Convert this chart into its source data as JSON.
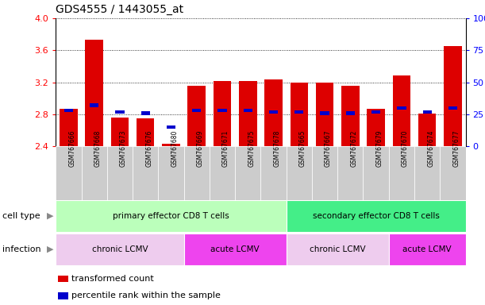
{
  "title": "GDS4555 / 1443055_at",
  "samples": [
    "GSM767666",
    "GSM767668",
    "GSM767673",
    "GSM767676",
    "GSM767680",
    "GSM767669",
    "GSM767671",
    "GSM767675",
    "GSM767678",
    "GSM767665",
    "GSM767667",
    "GSM767672",
    "GSM767679",
    "GSM767670",
    "GSM767674",
    "GSM767677"
  ],
  "transformed_counts": [
    2.87,
    3.73,
    2.76,
    2.75,
    2.43,
    3.16,
    3.22,
    3.22,
    3.24,
    3.2,
    3.2,
    3.16,
    2.87,
    3.29,
    2.81,
    3.65
  ],
  "percentile_ranks": [
    28,
    32,
    27,
    26,
    15,
    28,
    28,
    28,
    27,
    27,
    26,
    26,
    27,
    30,
    27,
    30
  ],
  "ylim": [
    2.4,
    4.0
  ],
  "yticks": [
    2.4,
    2.8,
    3.2,
    3.6,
    4.0
  ],
  "right_yticks": [
    0,
    25,
    50,
    75,
    100
  ],
  "bar_color": "#dd0000",
  "percentile_color": "#0000cc",
  "plot_bg": "#ffffff",
  "label_bg": "#d0d0d0",
  "cell_type_groups": [
    {
      "label": "primary effector CD8 T cells",
      "start": 0,
      "end": 8,
      "color": "#bbffbb"
    },
    {
      "label": "secondary effector CD8 T cells",
      "start": 9,
      "end": 15,
      "color": "#44ee88"
    }
  ],
  "infection_groups": [
    {
      "label": "chronic LCMV",
      "start": 0,
      "end": 4,
      "color": "#eeccee"
    },
    {
      "label": "acute LCMV",
      "start": 5,
      "end": 8,
      "color": "#ee44ee"
    },
    {
      "label": "chronic LCMV",
      "start": 9,
      "end": 12,
      "color": "#eeccee"
    },
    {
      "label": "acute LCMV",
      "start": 13,
      "end": 15,
      "color": "#ee44ee"
    }
  ],
  "legend_items": [
    {
      "label": "transformed count",
      "color": "#dd0000"
    },
    {
      "label": "percentile rank within the sample",
      "color": "#0000cc"
    }
  ]
}
